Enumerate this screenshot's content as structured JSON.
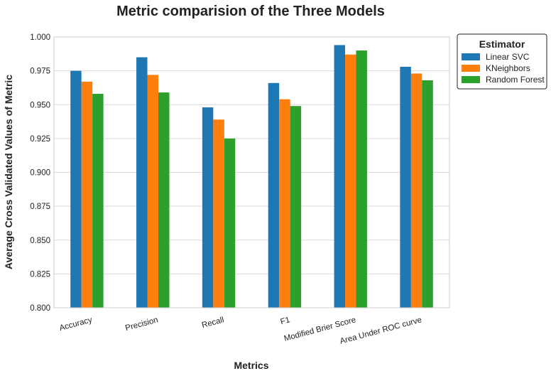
{
  "chart_data": {
    "type": "bar",
    "title": "Metric comparision of the Three Models",
    "xlabel": "Metrics",
    "ylabel": "Average Cross Validated Values of Metric",
    "categories": [
      "Accuracy",
      "Precision",
      "Recall",
      "F1",
      "Modified Brier Score",
      "Area Under ROC curve"
    ],
    "series": [
      {
        "name": "Linear SVC",
        "color": "#1f77b4",
        "values": [
          0.975,
          0.985,
          0.948,
          0.966,
          0.994,
          0.978
        ]
      },
      {
        "name": "KNeighbors",
        "color": "#ff7f0e",
        "values": [
          0.967,
          0.972,
          0.939,
          0.954,
          0.987,
          0.973
        ]
      },
      {
        "name": "Random Forest",
        "color": "#2ca02c",
        "values": [
          0.958,
          0.959,
          0.925,
          0.949,
          0.99,
          0.968
        ]
      }
    ],
    "ylim": [
      0.8,
      1.0
    ],
    "yticks": [
      "0.800",
      "0.825",
      "0.850",
      "0.875",
      "0.900",
      "0.925",
      "0.950",
      "0.975",
      "1.000"
    ],
    "grid": true,
    "legend": {
      "title": "Estimator",
      "position": "outside-top-right"
    }
  }
}
